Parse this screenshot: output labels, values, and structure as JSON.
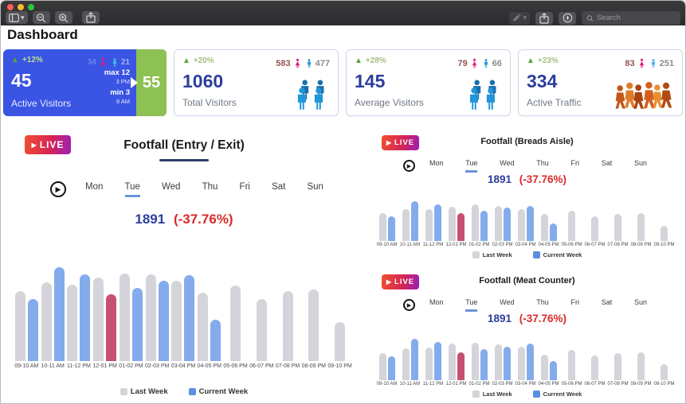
{
  "titlebar": {
    "search_placeholder": "Search",
    "left_buttons": [
      "sidebar-toggle",
      "zoom-out",
      "zoom-in",
      "share"
    ],
    "right_buttons": [
      "edit",
      "export",
      "compass"
    ],
    "window_controls": [
      "close",
      "minimize",
      "maximize"
    ]
  },
  "page_title": "Dashboard",
  "icons": {
    "trend_up": "▲",
    "play": "▶",
    "caret": "▾"
  },
  "colors": {
    "accent_blue": "#3a55e3",
    "strip_green": "#8dc153",
    "kpi_value": "#2c3e9c",
    "female_pink": "#e5177e",
    "male_blue": "#2f9cd8",
    "bar_last_week": "#d4d4da",
    "bar_current_week": "#84abec",
    "bar_highlight": "#c75070",
    "delta_red": "#d92a2a",
    "trend_green": "#56a33e",
    "live_gradient_start": "#f0502e",
    "live_gradient_end": "#9b1fb8",
    "tab_underline": "#6c95d9"
  },
  "kpi_cards": [
    {
      "trend": "+12%",
      "value": "45",
      "label": "Active Visitors",
      "female_count": "34",
      "male_count": "21",
      "max_text": "max 12",
      "max_time": "3 PM",
      "min_text": "min 3",
      "min_time": "9 AM",
      "side_value": "55"
    },
    {
      "trend": "+20%",
      "value": "1060",
      "label": "Total Visitors",
      "female_count": "583",
      "male_count": "477"
    },
    {
      "trend": "+28%",
      "value": "145",
      "label": "Average Visitors",
      "female_count": "79",
      "male_count": "66"
    },
    {
      "trend": "+23%",
      "value": "334",
      "label": "Active Traffic",
      "female_count": "83",
      "male_count": "251"
    }
  ],
  "charts_common": {
    "live_label": "LIVE",
    "days": [
      "Mon",
      "Tue",
      "Wed",
      "Thu",
      "Fri",
      "Sat",
      "Sun"
    ],
    "selected_day": "Tue",
    "legend": [
      "Last Week",
      "Current Week"
    ]
  },
  "chart_data": [
    {
      "type": "bar",
      "title": "Footfall (Entry / Exit)",
      "value_label": "1891",
      "delta_label": "(-37.76%)",
      "categories": [
        "09-10 AM",
        "10-11 AM",
        "11-12 PM",
        "12-01 PM",
        "01-02 PM",
        "02-03 PM",
        "03-04 PM",
        "04-05 PM",
        "05-06 PM",
        "06-07 PM",
        "07-08 PM",
        "08-09 PM",
        "09-10 PM"
      ],
      "series": [
        {
          "name": "Last Week",
          "values": [
            68,
            76,
            74,
            81,
            85,
            84,
            78,
            66,
            73,
            60,
            68,
            69,
            38
          ]
        },
        {
          "name": "Current Week",
          "values": [
            60,
            91,
            84,
            65,
            71,
            78,
            83,
            40,
            null,
            null,
            null,
            null,
            null
          ]
        }
      ],
      "highlight_category": "12-01 PM",
      "ylim": [
        0,
        100
      ],
      "grid": false,
      "legend_position": "bottom",
      "note": "no y-axis shown; heights relative"
    },
    {
      "type": "bar",
      "title": "Footfall (Breads Aisle)",
      "value_label": "1891",
      "delta_label": "(-37.76%)",
      "categories": [
        "09-10 AM",
        "10-11 AM",
        "11-12 PM",
        "12-01 PM",
        "01-02 PM",
        "02-03 PM",
        "03-04 PM",
        "04-05 PM",
        "05-06 PM",
        "06-07 PM",
        "07-08 PM",
        "08-09 PM",
        "09-10 PM"
      ],
      "series": [
        {
          "name": "Last Week",
          "values": [
            62,
            70,
            70,
            76,
            81,
            77,
            71,
            60,
            67,
            55,
            60,
            62,
            34
          ]
        },
        {
          "name": "Current Week",
          "values": [
            55,
            87,
            80,
            62,
            67,
            73,
            77,
            38,
            null,
            null,
            null,
            null,
            null
          ]
        }
      ],
      "highlight_category": "12-01 PM",
      "ylim": [
        0,
        100
      ],
      "grid": false,
      "legend_position": "bottom",
      "note": "no y-axis shown; heights relative"
    },
    {
      "type": "bar",
      "title": "Footfall (Meat Counter)",
      "value_label": "1891",
      "delta_label": "(-37.76%)",
      "categories": [
        "09-10 AM",
        "10-11 AM",
        "11-12 PM",
        "12-01 PM",
        "01-02 PM",
        "02-03 PM",
        "03-04 PM",
        "04-05 PM",
        "05-06 PM",
        "06-07 PM",
        "07-08 PM",
        "08-09 PM",
        "09-10 PM"
      ],
      "series": [
        {
          "name": "Last Week",
          "values": [
            60,
            70,
            72,
            80,
            82,
            79,
            74,
            57,
            66,
            54,
            60,
            62,
            35
          ]
        },
        {
          "name": "Current Week",
          "values": [
            52,
            92,
            84,
            62,
            68,
            74,
            81,
            42,
            null,
            null,
            null,
            null,
            null
          ]
        }
      ],
      "highlight_category": "12-01 PM",
      "ylim": [
        0,
        100
      ],
      "grid": false,
      "legend_position": "bottom",
      "note": "no y-axis shown; heights relative"
    }
  ]
}
